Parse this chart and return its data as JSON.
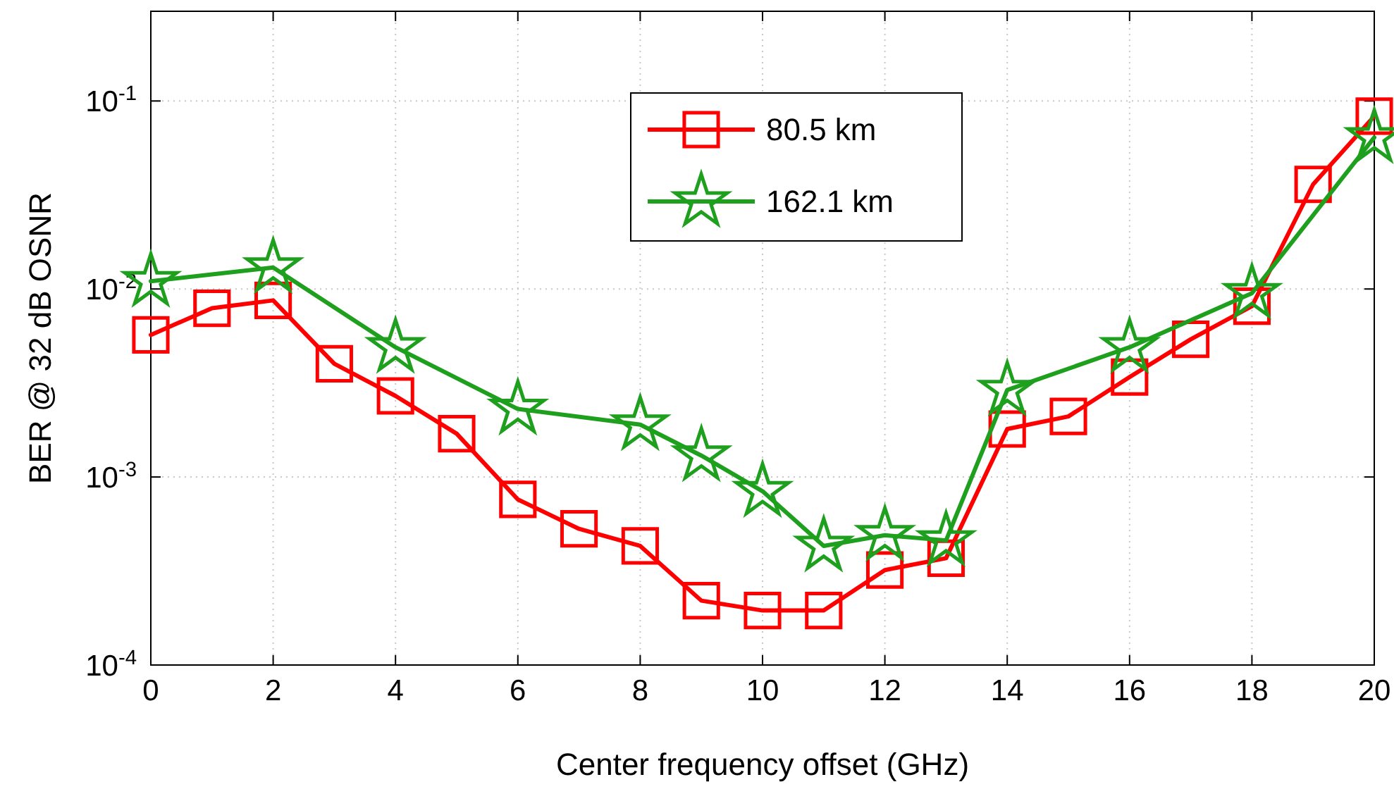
{
  "chart_data": {
    "type": "line",
    "xlabel": "Center frequency offset (GHz)",
    "ylabel": "BER @ 32 dB OSNR",
    "log": true,
    "grid": true,
    "legend": "top",
    "line_style": "solid",
    "xlim": [
      0,
      20
    ],
    "xticks": [
      0,
      2,
      4,
      6,
      8,
      10,
      12,
      14,
      16,
      18,
      20
    ],
    "ylim": [
      0.0001,
      0.3
    ],
    "yticks": [
      {
        "value": 0.0001,
        "label": "10$^{-4}$"
      },
      {
        "value": 0.001,
        "label": "10$^{-3}$"
      },
      {
        "value": 0.01,
        "label": "10$^{-2}$"
      },
      {
        "value": 0.1,
        "label": "10$^{-1}$"
      }
    ],
    "series": [
      {
        "name": "80.5 km",
        "color": "#ff0000",
        "marker": "square",
        "x": [
          0,
          1,
          2,
          3,
          4,
          5,
          6,
          7,
          8,
          9,
          10,
          11,
          12,
          13,
          14,
          15,
          16,
          17,
          18,
          19,
          20
        ],
        "values": [
          0.0057,
          0.0079,
          0.0087,
          0.004,
          0.0027,
          0.0017,
          0.00076,
          0.00053,
          0.00043,
          0.00022,
          0.000195,
          0.000195,
          0.00032,
          0.00037,
          0.0018,
          0.0021,
          0.0034,
          0.0054,
          0.0081,
          0.036,
          0.083
        ]
      },
      {
        "name": "162.1 km",
        "color": "#1ea01e",
        "marker": "star",
        "x": [
          0,
          2,
          4,
          6,
          8,
          9,
          10,
          11,
          12,
          13,
          14,
          16,
          18,
          20
        ],
        "values": [
          0.011,
          0.013,
          0.0049,
          0.0023,
          0.0019,
          0.0013,
          0.00084,
          0.00043,
          0.00049,
          0.00046,
          0.0029,
          0.0049,
          0.0095,
          0.064
        ]
      }
    ]
  }
}
